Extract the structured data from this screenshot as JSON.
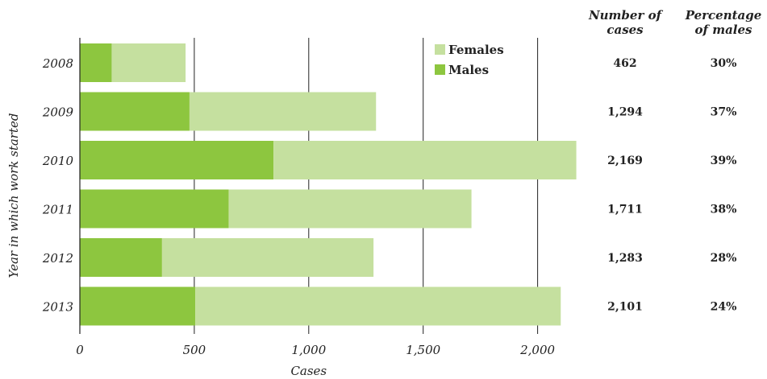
{
  "chart_data": {
    "type": "bar",
    "orientation": "horizontal",
    "stacked": true,
    "categories": [
      "2008",
      "2009",
      "2010",
      "2011",
      "2012",
      "2013"
    ],
    "series": [
      {
        "name": "Males",
        "color": "#8dc63f",
        "values": [
          139,
          479,
          846,
          650,
          359,
          504
        ]
      },
      {
        "name": "Females",
        "color": "#c5e09f",
        "values": [
          323,
          815,
          1323,
          1061,
          924,
          1597
        ]
      }
    ],
    "xlabel": "Cases",
    "ylabel": "Year in which work started",
    "xlim": [
      0,
      2200
    ],
    "xticks": [
      0,
      500,
      1000,
      1500,
      2000
    ],
    "xtick_labels": [
      "0",
      "500",
      "1,000",
      "1,500",
      "2,000"
    ],
    "grid": "vertical",
    "legend": {
      "position": "top-right",
      "entries": [
        "Females",
        "Males"
      ]
    },
    "table": {
      "headers": [
        {
          "line1": "Number of",
          "line2": "cases"
        },
        {
          "line1": "Percentage",
          "line2": "of males"
        }
      ],
      "number_of_cases": [
        "462",
        "1,294",
        "2,169",
        "1,711",
        "1,283",
        "2,101"
      ],
      "percentage_males": [
        "30%",
        "37%",
        "39%",
        "38%",
        "28%",
        "24%"
      ]
    }
  }
}
